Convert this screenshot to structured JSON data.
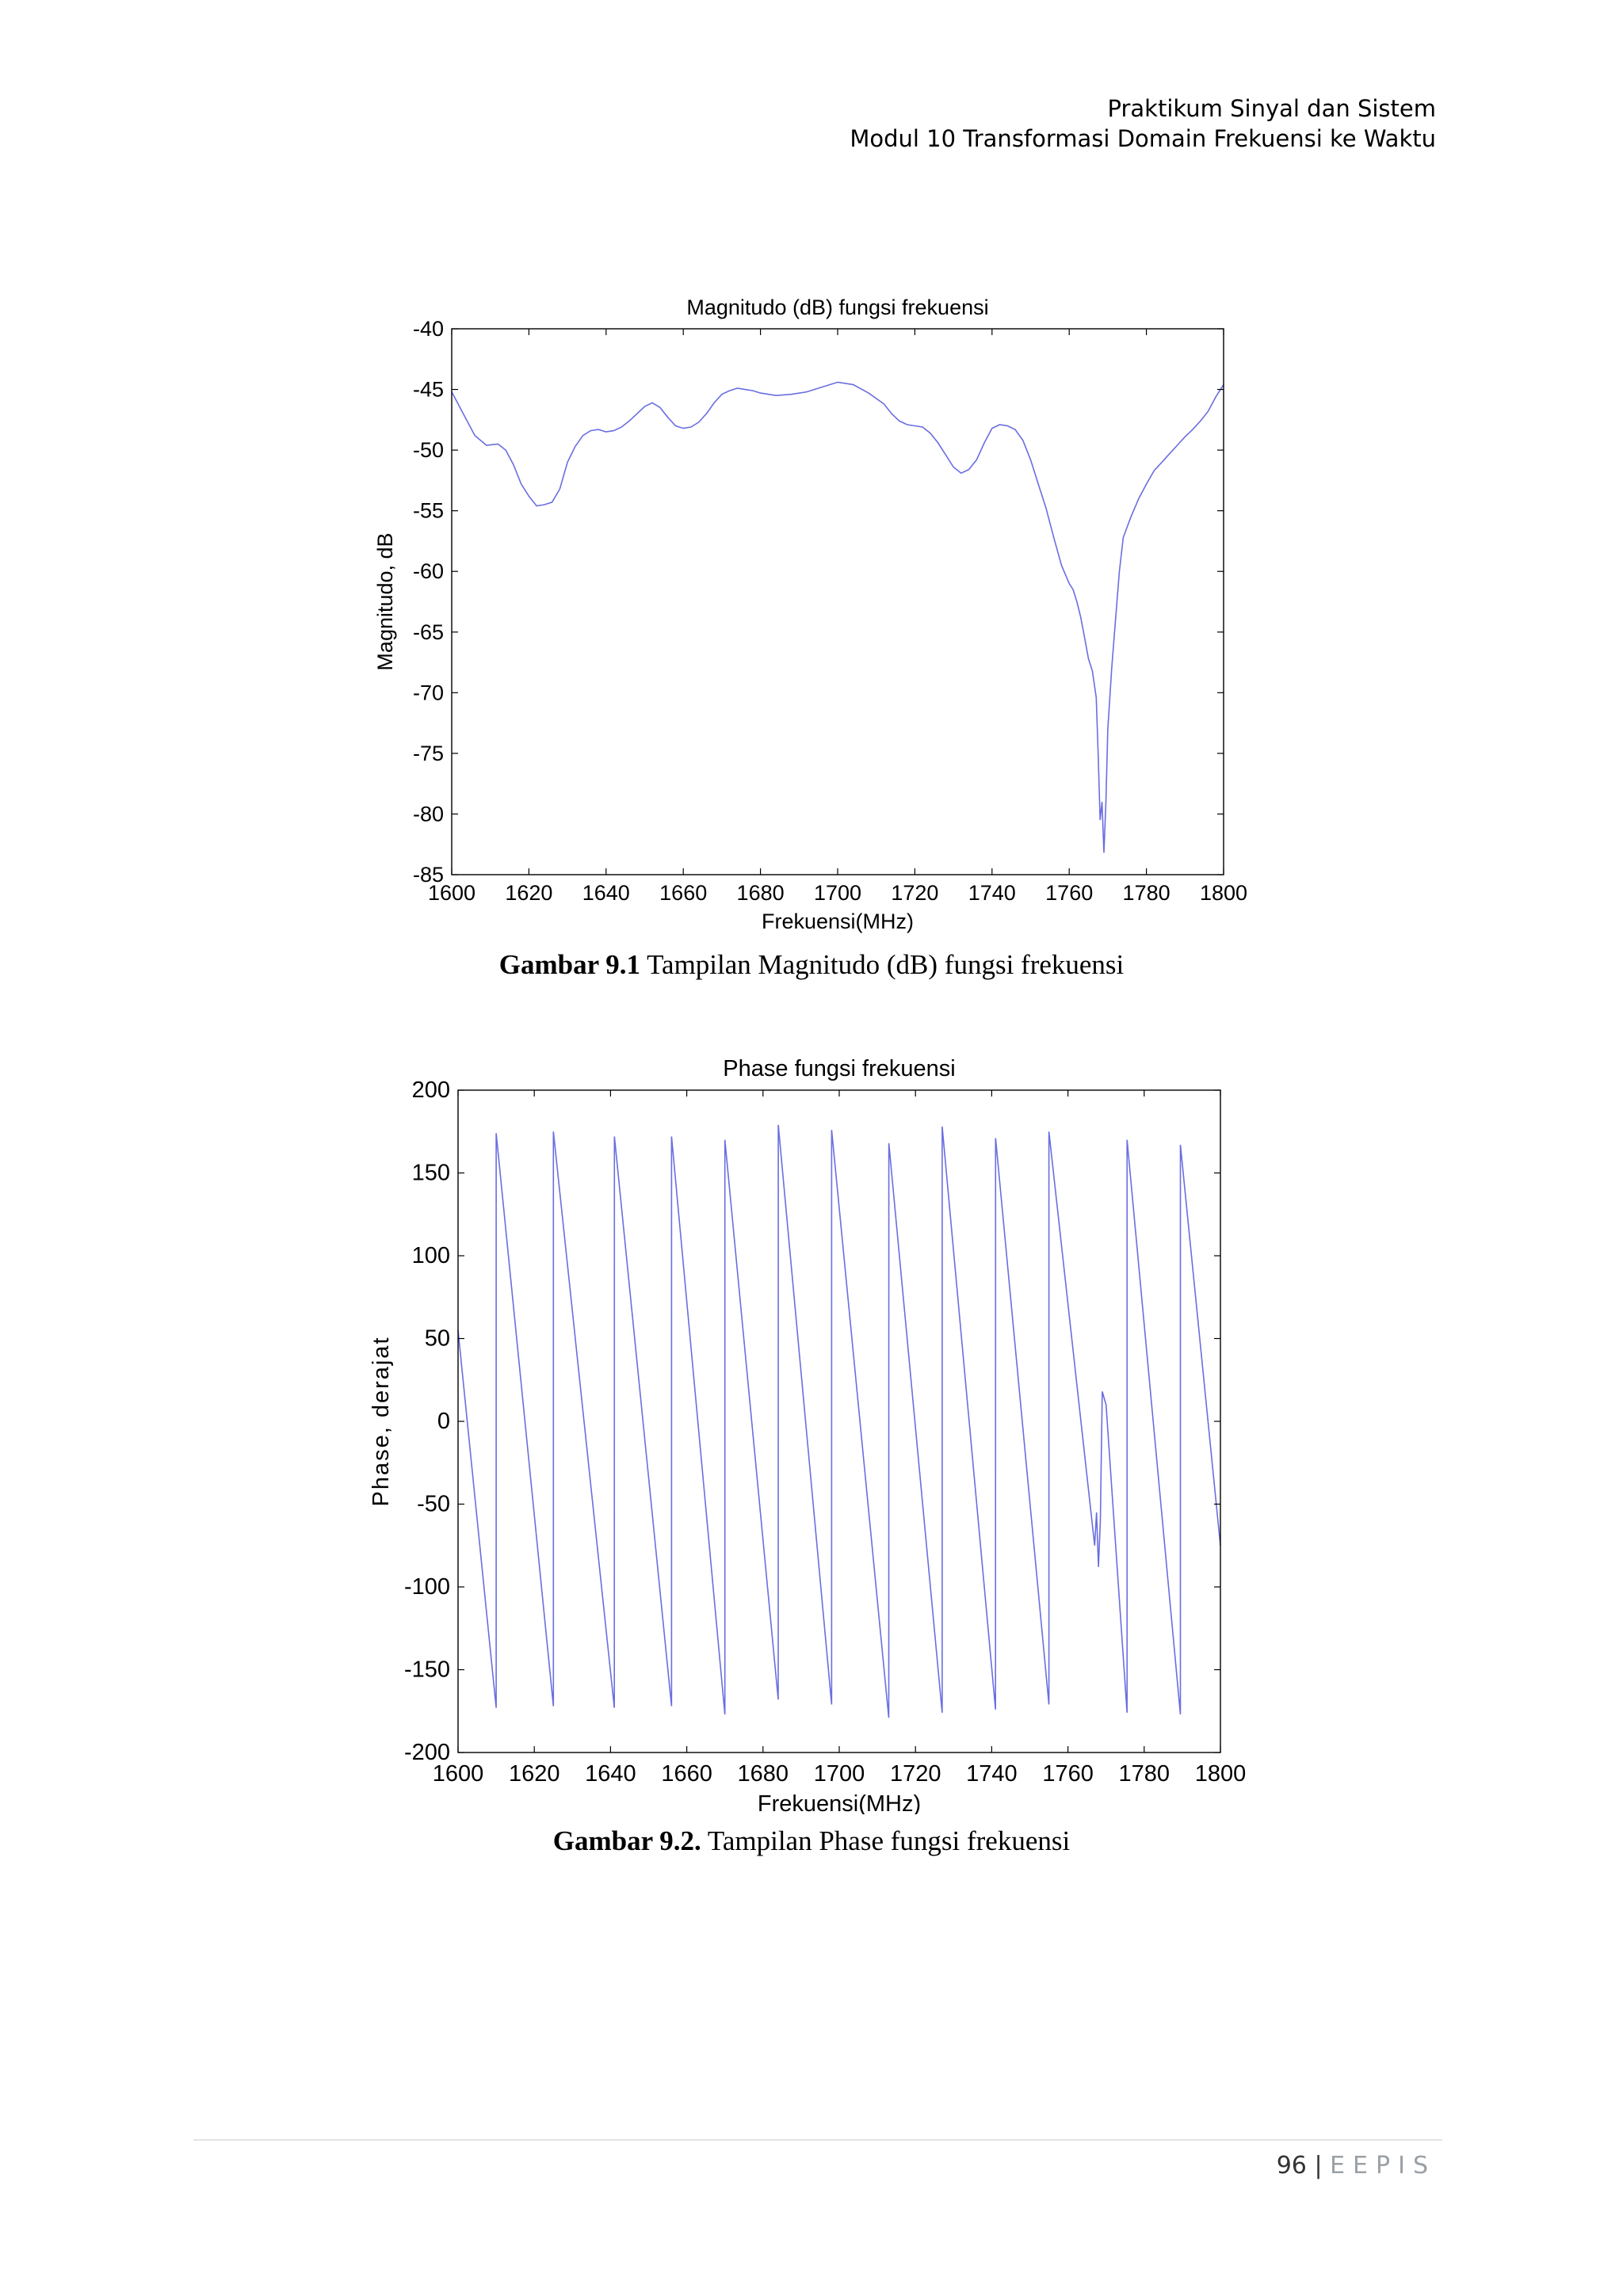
{
  "header": {
    "line1": "Praktikum Sinyal dan Sistem",
    "line2": "Modul 10 Transformasi Domain Frekuensi ke Waktu"
  },
  "figures": [
    {
      "caption_bold": "Gambar 9.1",
      "caption_text": " Tampilan Magnitudo (dB) fungsi frekuensi"
    },
    {
      "caption_bold": "Gambar 9.2.",
      "caption_text": " Tampilan Phase fungsi frekuensi"
    }
  ],
  "footer": {
    "page_number": "96",
    "separator": "|",
    "org": "EEPIS"
  },
  "colors": {
    "line": "#6a6ee0"
  },
  "chart_data": [
    {
      "type": "line",
      "title": "Magnitudo (dB) fungsi frekuensi",
      "xlabel": "Frekuensi(MHz)",
      "ylabel": "Magnitudo, dB",
      "xlim": [
        1600,
        1800
      ],
      "ylim": [
        -85,
        -40
      ],
      "xticks": [
        1600,
        1620,
        1640,
        1660,
        1680,
        1700,
        1720,
        1740,
        1760,
        1780,
        1800
      ],
      "yticks": [
        -40,
        -45,
        -50,
        -55,
        -60,
        -65,
        -70,
        -75,
        -80,
        -85
      ],
      "grid": false,
      "series": [
        {
          "x": [
            1600,
            1603,
            1606,
            1609,
            1612,
            1614,
            1616,
            1618,
            1620,
            1622,
            1624,
            1626,
            1628,
            1630,
            1632,
            1634,
            1636,
            1638,
            1640,
            1642,
            1644,
            1646,
            1648,
            1650,
            1652,
            1654,
            1656,
            1658,
            1660,
            1662,
            1664,
            1666,
            1668,
            1670,
            1672,
            1674,
            1676,
            1678,
            1680,
            1684,
            1688,
            1692,
            1696,
            1700,
            1704,
            1708,
            1712,
            1714,
            1716,
            1718,
            1720,
            1722,
            1724,
            1726,
            1728,
            1730,
            1732,
            1734,
            1736,
            1738,
            1740,
            1742,
            1744,
            1746,
            1748,
            1750,
            1752,
            1754,
            1756,
            1758,
            1760,
            1761,
            1762,
            1763,
            1764,
            1765,
            1766,
            1767,
            1767.5,
            1768,
            1768.5,
            1769,
            1769.5,
            1770,
            1771,
            1772,
            1773,
            1774,
            1776,
            1778,
            1780,
            1782,
            1784,
            1786,
            1788,
            1790,
            1792,
            1794,
            1796,
            1798,
            1800
          ],
          "y": [
            -45.2,
            -47,
            -48.8,
            -49.6,
            -49.5,
            -50,
            -51.2,
            -52.8,
            -53.8,
            -54.6,
            -54.5,
            -54.3,
            -53.2,
            -51,
            -49.7,
            -48.8,
            -48.4,
            -48.3,
            -48.5,
            -48.4,
            -48.1,
            -47.6,
            -47,
            -46.4,
            -46.1,
            -46.5,
            -47.3,
            -48,
            -48.2,
            -48.1,
            -47.7,
            -47,
            -46.1,
            -45.4,
            -45.1,
            -44.9,
            -45,
            -45.1,
            -45.3,
            -45.5,
            -45.4,
            -45.2,
            -44.8,
            -44.4,
            -44.6,
            -45.3,
            -46.2,
            -47,
            -47.6,
            -47.9,
            -48,
            -48.1,
            -48.6,
            -49.4,
            -50.4,
            -51.4,
            -51.9,
            -51.6,
            -50.8,
            -49.4,
            -48.2,
            -47.9,
            -48,
            -48.3,
            -49.2,
            -50.8,
            -52.8,
            -54.8,
            -57.2,
            -59.5,
            -61,
            -61.5,
            -62.5,
            -63.8,
            -65.5,
            -67.2,
            -68.2,
            -70.4,
            -75,
            -80.5,
            -79,
            -83.2,
            -79,
            -73,
            -68,
            -64,
            -60,
            -57.2,
            -55.5,
            -54,
            -52.8,
            -51.7,
            -51,
            -50.3,
            -49.6,
            -48.9,
            -48.3,
            -47.6,
            -46.8,
            -45.6,
            -44.6
          ]
        }
      ]
    },
    {
      "type": "line",
      "title": "Phase fungsi frekuensi",
      "xlabel": "Frekuensi(MHz)",
      "ylabel": "Phase, derajat",
      "xlim": [
        1600,
        1800
      ],
      "ylim": [
        -200,
        200
      ],
      "xticks": [
        1600,
        1620,
        1640,
        1660,
        1680,
        1700,
        1720,
        1740,
        1760,
        1780,
        1800
      ],
      "yticks": [
        200,
        150,
        100,
        50,
        0,
        -50,
        -100,
        -150,
        -200
      ],
      "grid": false,
      "series": [
        {
          "x": [
            1600,
            1610,
            1610.01,
            1625,
            1625.01,
            1641,
            1641.01,
            1656,
            1656.01,
            1670,
            1670.01,
            1684,
            1684.01,
            1698,
            1698.01,
            1713,
            1713.01,
            1727,
            1727.01,
            1741,
            1741.01,
            1755,
            1755.01,
            1767,
            1767.5,
            1768,
            1768.5,
            1769,
            1770,
            1775.5,
            1775.51,
            1789.5,
            1789.51,
            1800
          ],
          "y": [
            55,
            -173,
            174,
            -172,
            175,
            -173,
            172,
            -172,
            172,
            -177,
            170,
            -168,
            179,
            -171,
            176,
            -179,
            168,
            -176,
            178,
            -174,
            171,
            -171,
            175,
            -75,
            -55,
            -88,
            -60,
            18,
            10,
            -176,
            170,
            -177,
            167,
            -75
          ]
        }
      ]
    }
  ]
}
